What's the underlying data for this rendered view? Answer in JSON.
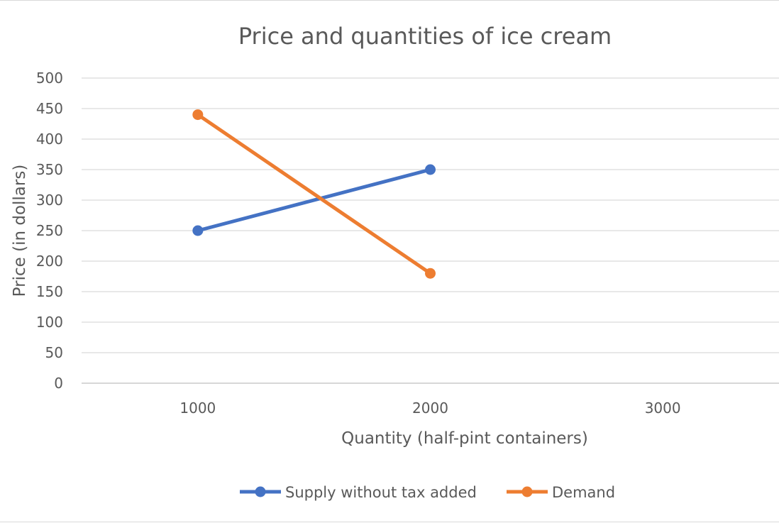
{
  "chart_data": {
    "type": "line",
    "title": "Price and quantities of ice cream",
    "xlabel": "Quantity (half-pint containers)",
    "ylabel": "Price (in dollars)",
    "categories": [
      "1000",
      "2000",
      "3000"
    ],
    "ylim": [
      0,
      500
    ],
    "yticks": [
      0,
      50,
      100,
      150,
      200,
      250,
      300,
      350,
      400,
      450,
      500
    ],
    "grid": true,
    "legend_position": "bottom",
    "series": [
      {
        "name": "Supply without tax added",
        "color": "#4472c4",
        "values": [
          250,
          350,
          null
        ]
      },
      {
        "name": "Demand",
        "color": "#ed7d31",
        "values": [
          440,
          180,
          null
        ]
      }
    ]
  }
}
